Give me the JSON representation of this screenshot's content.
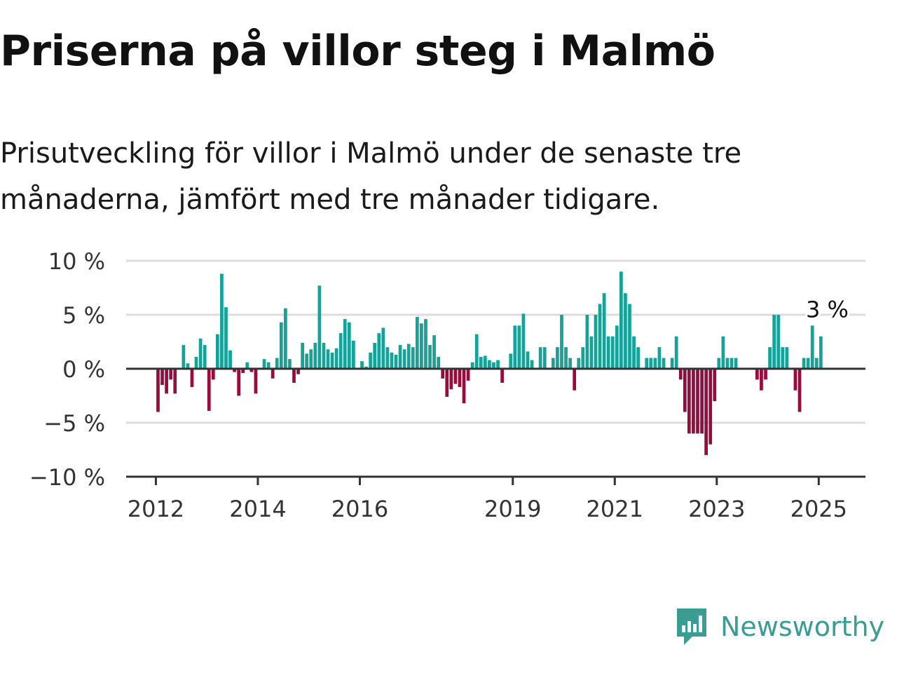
{
  "title": "Priserna på villor steg i Malmö",
  "subtitle": "Prisutveckling för villor i Malmö under de senaste tre månaderna, jämfört med tre månader tidigare.",
  "brand": {
    "name": "Newsworthy",
    "icon": "newsworthy-logo-icon",
    "color": "#3a9d94"
  },
  "colors": {
    "positive": "#13a398",
    "negative": "#9a0a3c",
    "grid": "#dddddd",
    "axis": "#333333"
  },
  "chart_data": {
    "type": "bar",
    "xlabel": "",
    "ylabel": "",
    "ylim": [
      -10,
      10
    ],
    "x_range": [
      "2011-06",
      "2025-12"
    ],
    "y_ticks": [
      10,
      5,
      0,
      -5,
      -10
    ],
    "y_tick_labels": [
      "10 %",
      "5 %",
      "0 %",
      "−5 %",
      "−10 %"
    ],
    "x_ticks": [
      "2012",
      "2014",
      "2016",
      "2019",
      "2021",
      "2023",
      "2025"
    ],
    "grid": true,
    "annotation": {
      "month": "2025-03",
      "value": 3,
      "text": "3 %"
    },
    "points": [
      {
        "month": "2012-01",
        "value": -4
      },
      {
        "month": "2012-02",
        "value": -1.5
      },
      {
        "month": "2012-03",
        "value": -2.3
      },
      {
        "month": "2012-04",
        "value": -1
      },
      {
        "month": "2012-05",
        "value": -2.3
      },
      {
        "month": "2012-07",
        "value": 2.2
      },
      {
        "month": "2012-08",
        "value": 0.5
      },
      {
        "month": "2012-09",
        "value": -1.7
      },
      {
        "month": "2012-10",
        "value": 1.1
      },
      {
        "month": "2012-11",
        "value": 2.8
      },
      {
        "month": "2012-12",
        "value": 2.2
      },
      {
        "month": "2013-01",
        "value": -3.9
      },
      {
        "month": "2013-02",
        "value": -1
      },
      {
        "month": "2013-03",
        "value": 3.2
      },
      {
        "month": "2013-04",
        "value": 8.8
      },
      {
        "month": "2013-05",
        "value": 5.7
      },
      {
        "month": "2013-06",
        "value": 1.7
      },
      {
        "month": "2013-07",
        "value": -0.3
      },
      {
        "month": "2013-08",
        "value": -2.5
      },
      {
        "month": "2013-09",
        "value": -0.4
      },
      {
        "month": "2013-10",
        "value": 0.6
      },
      {
        "month": "2013-11",
        "value": -0.3
      },
      {
        "month": "2013-12",
        "value": -2.3
      },
      {
        "month": "2014-02",
        "value": 0.9
      },
      {
        "month": "2014-03",
        "value": 0.6
      },
      {
        "month": "2014-04",
        "value": -0.9
      },
      {
        "month": "2014-05",
        "value": 1
      },
      {
        "month": "2014-06",
        "value": 4.3
      },
      {
        "month": "2014-07",
        "value": 5.6
      },
      {
        "month": "2014-08",
        "value": 0.9
      },
      {
        "month": "2014-09",
        "value": -1.3
      },
      {
        "month": "2014-10",
        "value": -0.5
      },
      {
        "month": "2014-11",
        "value": 2.4
      },
      {
        "month": "2014-12",
        "value": 1.4
      },
      {
        "month": "2015-01",
        "value": 1.8
      },
      {
        "month": "2015-02",
        "value": 2.4
      },
      {
        "month": "2015-03",
        "value": 7.7
      },
      {
        "month": "2015-04",
        "value": 2.4
      },
      {
        "month": "2015-05",
        "value": 1.8
      },
      {
        "month": "2015-06",
        "value": 1.5
      },
      {
        "month": "2015-07",
        "value": 1.9
      },
      {
        "month": "2015-08",
        "value": 3.3
      },
      {
        "month": "2015-09",
        "value": 4.6
      },
      {
        "month": "2015-10",
        "value": 4.3
      },
      {
        "month": "2015-11",
        "value": 2.6
      },
      {
        "month": "2016-01",
        "value": 0.7
      },
      {
        "month": "2016-02",
        "value": 0.2
      },
      {
        "month": "2016-03",
        "value": 1.5
      },
      {
        "month": "2016-04",
        "value": 2.4
      },
      {
        "month": "2016-05",
        "value": 3.3
      },
      {
        "month": "2016-06",
        "value": 3.8
      },
      {
        "month": "2016-07",
        "value": 2
      },
      {
        "month": "2016-08",
        "value": 1.5
      },
      {
        "month": "2016-09",
        "value": 1.3
      },
      {
        "month": "2016-10",
        "value": 2.2
      },
      {
        "month": "2016-11",
        "value": 1.8
      },
      {
        "month": "2016-12",
        "value": 2.3
      },
      {
        "month": "2017-01",
        "value": 2
      },
      {
        "month": "2017-02",
        "value": 4.8
      },
      {
        "month": "2017-03",
        "value": 4.2
      },
      {
        "month": "2017-04",
        "value": 4.6
      },
      {
        "month": "2017-05",
        "value": 2.2
      },
      {
        "month": "2017-06",
        "value": 3.1
      },
      {
        "month": "2017-07",
        "value": 1.1
      },
      {
        "month": "2017-08",
        "value": -0.9
      },
      {
        "month": "2017-09",
        "value": -2.6
      },
      {
        "month": "2017-10",
        "value": -1.9
      },
      {
        "month": "2017-11",
        "value": -1.4
      },
      {
        "month": "2017-12",
        "value": -1.7
      },
      {
        "month": "2018-01",
        "value": -3.2
      },
      {
        "month": "2018-02",
        "value": -1.1
      },
      {
        "month": "2018-03",
        "value": 0.6
      },
      {
        "month": "2018-04",
        "value": 3.2
      },
      {
        "month": "2018-05",
        "value": 1.1
      },
      {
        "month": "2018-06",
        "value": 1.2
      },
      {
        "month": "2018-07",
        "value": 0.8
      },
      {
        "month": "2018-08",
        "value": 0.6
      },
      {
        "month": "2018-09",
        "value": 0.8
      },
      {
        "month": "2018-10",
        "value": -1.3
      },
      {
        "month": "2018-12",
        "value": 1.4
      },
      {
        "month": "2019-01",
        "value": 4
      },
      {
        "month": "2019-02",
        "value": 4
      },
      {
        "month": "2019-03",
        "value": 5.1
      },
      {
        "month": "2019-04",
        "value": 1.6
      },
      {
        "month": "2019-05",
        "value": 0.8
      },
      {
        "month": "2019-07",
        "value": 2
      },
      {
        "month": "2019-08",
        "value": 2
      },
      {
        "month": "2019-10",
        "value": 1
      },
      {
        "month": "2019-11",
        "value": 2
      },
      {
        "month": "2019-12",
        "value": 5
      },
      {
        "month": "2020-01",
        "value": 2
      },
      {
        "month": "2020-02",
        "value": 1
      },
      {
        "month": "2020-03",
        "value": -2
      },
      {
        "month": "2020-04",
        "value": 1
      },
      {
        "month": "2020-05",
        "value": 2
      },
      {
        "month": "2020-06",
        "value": 5
      },
      {
        "month": "2020-07",
        "value": 3
      },
      {
        "month": "2020-08",
        "value": 5
      },
      {
        "month": "2020-09",
        "value": 6
      },
      {
        "month": "2020-10",
        "value": 7
      },
      {
        "month": "2020-11",
        "value": 3
      },
      {
        "month": "2020-12",
        "value": 3
      },
      {
        "month": "2021-01",
        "value": 4
      },
      {
        "month": "2021-02",
        "value": 9
      },
      {
        "month": "2021-03",
        "value": 7
      },
      {
        "month": "2021-04",
        "value": 6
      },
      {
        "month": "2021-05",
        "value": 3
      },
      {
        "month": "2021-06",
        "value": 2
      },
      {
        "month": "2021-08",
        "value": 1
      },
      {
        "month": "2021-09",
        "value": 1
      },
      {
        "month": "2021-10",
        "value": 1
      },
      {
        "month": "2021-11",
        "value": 2
      },
      {
        "month": "2021-12",
        "value": 1
      },
      {
        "month": "2022-02",
        "value": 1
      },
      {
        "month": "2022-03",
        "value": 3
      },
      {
        "month": "2022-04",
        "value": -1
      },
      {
        "month": "2022-05",
        "value": -4
      },
      {
        "month": "2022-06",
        "value": -6
      },
      {
        "month": "2022-07",
        "value": -6
      },
      {
        "month": "2022-08",
        "value": -6
      },
      {
        "month": "2022-09",
        "value": -6
      },
      {
        "month": "2022-10",
        "value": -8
      },
      {
        "month": "2022-11",
        "value": -7
      },
      {
        "month": "2022-12",
        "value": -3
      },
      {
        "month": "2023-01",
        "value": 1
      },
      {
        "month": "2023-02",
        "value": 3
      },
      {
        "month": "2023-03",
        "value": 1
      },
      {
        "month": "2023-04",
        "value": 1
      },
      {
        "month": "2023-05",
        "value": 1
      },
      {
        "month": "2023-10",
        "value": -1
      },
      {
        "month": "2023-11",
        "value": -2
      },
      {
        "month": "2023-12",
        "value": -1
      },
      {
        "month": "2024-01",
        "value": 2
      },
      {
        "month": "2024-02",
        "value": 5
      },
      {
        "month": "2024-03",
        "value": 5
      },
      {
        "month": "2024-04",
        "value": 2
      },
      {
        "month": "2024-05",
        "value": 2
      },
      {
        "month": "2024-07",
        "value": -2
      },
      {
        "month": "2024-08",
        "value": -4
      },
      {
        "month": "2024-09",
        "value": 1
      },
      {
        "month": "2024-10",
        "value": 1
      },
      {
        "month": "2024-11",
        "value": 4
      },
      {
        "month": "2024-12",
        "value": 1
      },
      {
        "month": "2025-01",
        "value": 3
      }
    ]
  }
}
